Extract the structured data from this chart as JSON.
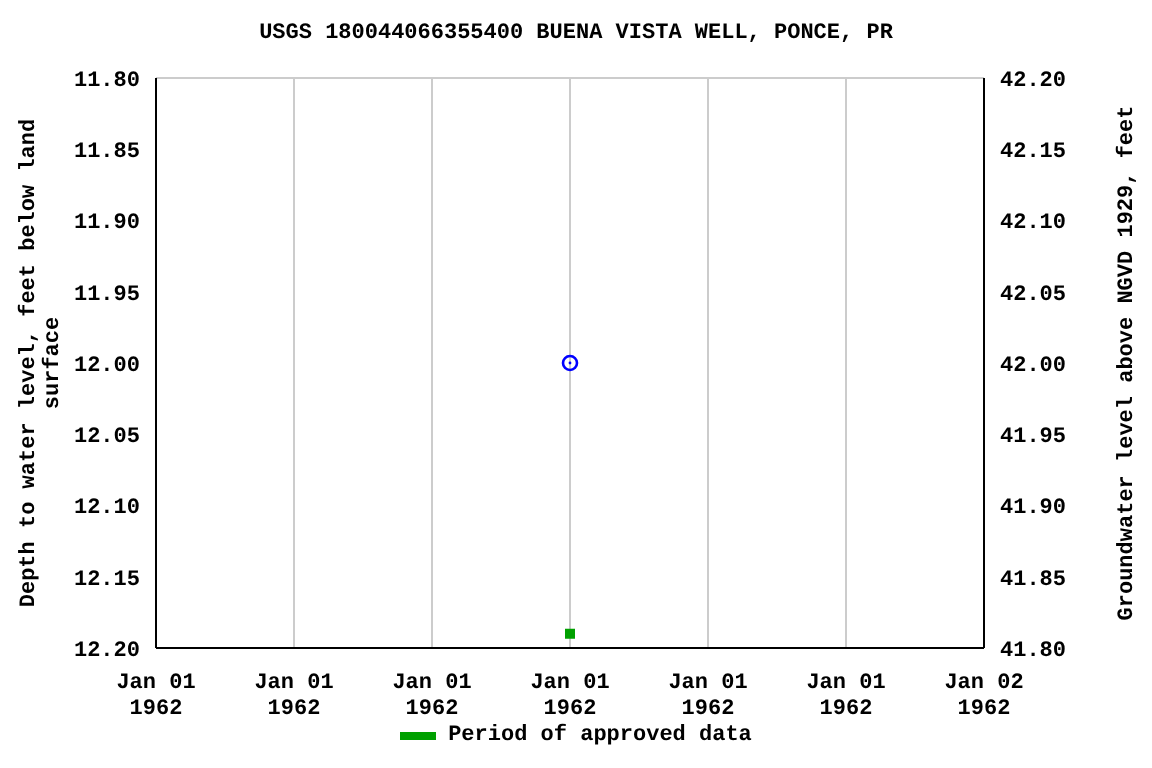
{
  "chart_data": {
    "type": "scatter",
    "title": "USGS 180044066355400 BUENA VISTA WELL, PONCE, PR",
    "ylabel": "Depth to water level, feet below land surface",
    "y2label": "Groundwater level above NGVD 1929, feet",
    "x": [
      "1962-01-01T12:00"
    ],
    "xlim": [
      "1962-01-01T00:00",
      "1962-01-02T00:00"
    ],
    "xticks": [
      {
        "value": "1962-01-01T00:00",
        "label": "Jan 01\n1962"
      },
      {
        "value": "1962-01-01T04:00",
        "label": "Jan 01\n1962"
      },
      {
        "value": "1962-01-01T08:00",
        "label": "Jan 01\n1962"
      },
      {
        "value": "1962-01-01T12:00",
        "label": "Jan 01\n1962"
      },
      {
        "value": "1962-01-01T16:00",
        "label": "Jan 01\n1962"
      },
      {
        "value": "1962-01-01T20:00",
        "label": "Jan 01\n1962"
      },
      {
        "value": "1962-01-02T00:00",
        "label": "Jan 02\n1962"
      }
    ],
    "ylim": [
      12.2,
      11.8
    ],
    "yticks": [
      {
        "value": 11.8,
        "label": "11.80"
      },
      {
        "value": 11.85,
        "label": "11.85"
      },
      {
        "value": 11.9,
        "label": "11.90"
      },
      {
        "value": 11.95,
        "label": "11.95"
      },
      {
        "value": 12.0,
        "label": "12.00"
      },
      {
        "value": 12.05,
        "label": "12.05"
      },
      {
        "value": 12.1,
        "label": "12.10"
      },
      {
        "value": 12.15,
        "label": "12.15"
      },
      {
        "value": 12.2,
        "label": "12.20"
      }
    ],
    "y2lim": [
      41.8,
      42.2
    ],
    "y2ticks": [
      {
        "value": 41.8,
        "label": "41.80"
      },
      {
        "value": 41.85,
        "label": "41.85"
      },
      {
        "value": 41.9,
        "label": "41.90"
      },
      {
        "value": 41.95,
        "label": "41.95"
      },
      {
        "value": 42.0,
        "label": "42.00"
      },
      {
        "value": 42.05,
        "label": "42.05"
      },
      {
        "value": 42.1,
        "label": "42.10"
      },
      {
        "value": 42.15,
        "label": "42.15"
      },
      {
        "value": 42.2,
        "label": "42.20"
      }
    ],
    "series": [
      {
        "color": "#0000ff",
        "marker": "circle",
        "values": [
          12.0
        ]
      },
      {
        "name": "Period of approved data",
        "color": "#00a000",
        "marker": "square",
        "values": [
          12.19
        ]
      }
    ],
    "grid": true,
    "legend": "bottom"
  }
}
